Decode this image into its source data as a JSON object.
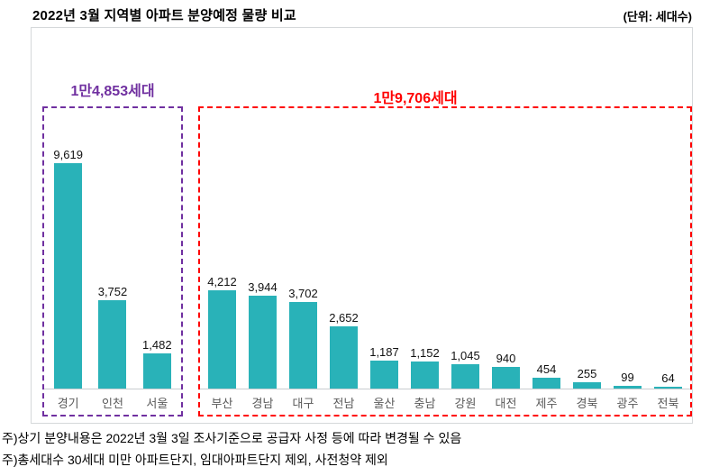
{
  "title": "2022년 3월 지역별 아파트 분양예정 물량 비교",
  "unit_label": "(단위: 세대수)",
  "chart_data": {
    "type": "bar",
    "title": "2022년 3월 지역별 아파트 분양예정 물량 비교",
    "unit": "세대수",
    "bar_color": "#29b2b8",
    "ylim": [
      0,
      10000
    ],
    "grid": false,
    "axis_hidden": true,
    "groups": [
      {
        "name": "metro",
        "total_label": "1만4,853세대",
        "total_value": 14853,
        "color": "#7030a0",
        "categories": [
          "경기",
          "인천",
          "서울"
        ],
        "values": [
          9619,
          3752,
          1482
        ],
        "value_labels": [
          "9,619",
          "3,752",
          "1,482"
        ]
      },
      {
        "name": "regional",
        "total_label": "1만9,706세대",
        "total_value": 19706,
        "color": "#ff0000",
        "categories": [
          "부산",
          "경남",
          "대구",
          "전남",
          "울산",
          "충남",
          "강원",
          "대전",
          "제주",
          "경북",
          "광주",
          "전북"
        ],
        "values": [
          4212,
          3944,
          3702,
          2652,
          1187,
          1152,
          1045,
          940,
          454,
          255,
          99,
          64
        ],
        "value_labels": [
          "4,212",
          "3,944",
          "3,702",
          "2,652",
          "1,187",
          "1,152",
          "1,045",
          "940",
          "454",
          "255",
          "99",
          "64"
        ]
      }
    ]
  },
  "footnotes": [
    "주)상기 분양내용은 2022년 3월 3일 조사기준으로 공급자 사정 등에 따라 변경될 수 있음",
    "주)총세대수 30세대 미만 아파트단지, 임대아파트단지 제외, 사전청약 제외"
  ]
}
